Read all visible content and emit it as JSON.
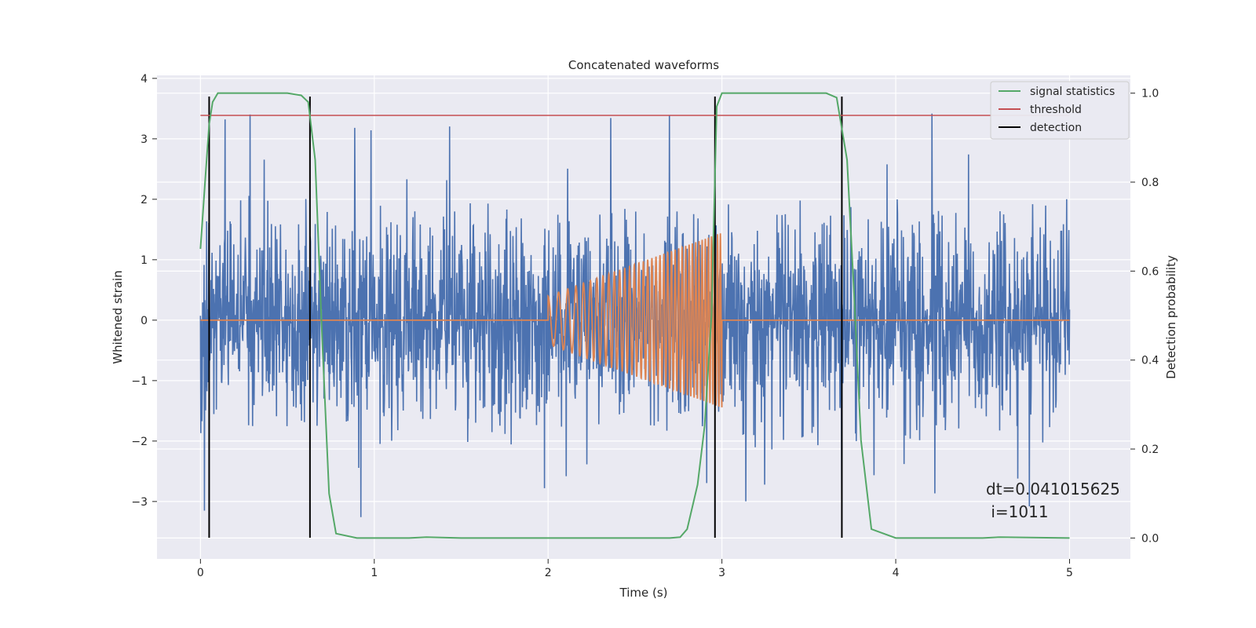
{
  "chart_data": {
    "type": "line",
    "title": "Concatenated waveforms",
    "xlabel": "Time (s)",
    "ylabel": "Whitened strain",
    "y2label": "Detection probability",
    "xlim": [
      -0.25,
      5.35
    ],
    "ylim": [
      -3.95,
      4.05
    ],
    "y2lim": [
      -0.047,
      1.04
    ],
    "x_ticks": [
      0,
      1,
      2,
      3,
      4,
      5
    ],
    "x_tick_labels": [
      "0",
      "1",
      "2",
      "3",
      "4",
      "5"
    ],
    "y_ticks": [
      -3,
      -2,
      -1,
      0,
      1,
      2,
      3,
      4
    ],
    "y_tick_labels": [
      "−3",
      "−2",
      "−1",
      "0",
      "1",
      "2",
      "3",
      "4"
    ],
    "y2_ticks": [
      0.0,
      0.2,
      0.4,
      0.6,
      0.8,
      1.0
    ],
    "y2_tick_labels": [
      "0.0",
      "0.2",
      "0.4",
      "0.6",
      "0.8",
      "1.0"
    ],
    "grid": true,
    "legend_position": "top-right",
    "colors": {
      "strain": "#4c72b0",
      "template": "#dd8452",
      "signal": "#55a868",
      "threshold": "#c44e52",
      "detection": "#000000",
      "background": "#eaeaf2",
      "grid": "#ffffff"
    },
    "series": [
      {
        "name": "signal statistics",
        "axis": "right",
        "x": [
          0.0,
          0.03,
          0.05,
          0.07,
          0.1,
          0.15,
          0.3,
          0.5,
          0.58,
          0.62,
          0.66,
          0.7,
          0.74,
          0.78,
          0.9,
          1.2,
          1.3,
          1.5,
          2.0,
          2.5,
          2.7,
          2.76,
          2.8,
          2.86,
          2.9,
          2.94,
          2.97,
          3.0,
          3.1,
          3.3,
          3.6,
          3.66,
          3.72,
          3.76,
          3.8,
          3.86,
          4.0,
          4.5,
          4.6,
          5.0
        ],
        "values": [
          0.65,
          0.82,
          0.93,
          0.98,
          1.0,
          1.0,
          1.0,
          1.0,
          0.995,
          0.98,
          0.85,
          0.45,
          0.1,
          0.01,
          0.0,
          0.0,
          0.002,
          0.0,
          0.0,
          0.0,
          0.0,
          0.002,
          0.02,
          0.12,
          0.25,
          0.5,
          0.97,
          1.0,
          1.0,
          1.0,
          1.0,
          0.99,
          0.85,
          0.55,
          0.22,
          0.02,
          0.0,
          0.0,
          0.002,
          0.0
        ]
      },
      {
        "name": "threshold",
        "axis": "right",
        "x": [
          0.0,
          5.0
        ],
        "values": [
          0.95,
          0.95
        ]
      },
      {
        "name": "detection",
        "axis": "left",
        "x": [
          0.05,
          0.63,
          2.96,
          3.69
        ],
        "y_range": [
          -3.6,
          3.7
        ]
      },
      {
        "axis": "left",
        "x_range": [
          0,
          5
        ],
        "amplitude_envelope": 2.2,
        "peak_range": [
          -3.6,
          3.7
        ]
      },
      {
        "axis": "left",
        "x": [
          0.0,
          2.0,
          2.05,
          3.0,
          3.0,
          5.0
        ],
        "values": [
          0,
          0,
          0.4,
          1.45,
          0,
          0
        ],
        "chirp_start": 2.0,
        "chirp_end": 3.0,
        "start_frequency": 15,
        "end_frequency": 60,
        "amplitude_start": 0.4,
        "amplitude_end": 1.45
      }
    ],
    "annotation": {
      "line1": "dt=0.041015625",
      "line2": " i=1011",
      "x": 4.5,
      "y": 0.12
    }
  }
}
